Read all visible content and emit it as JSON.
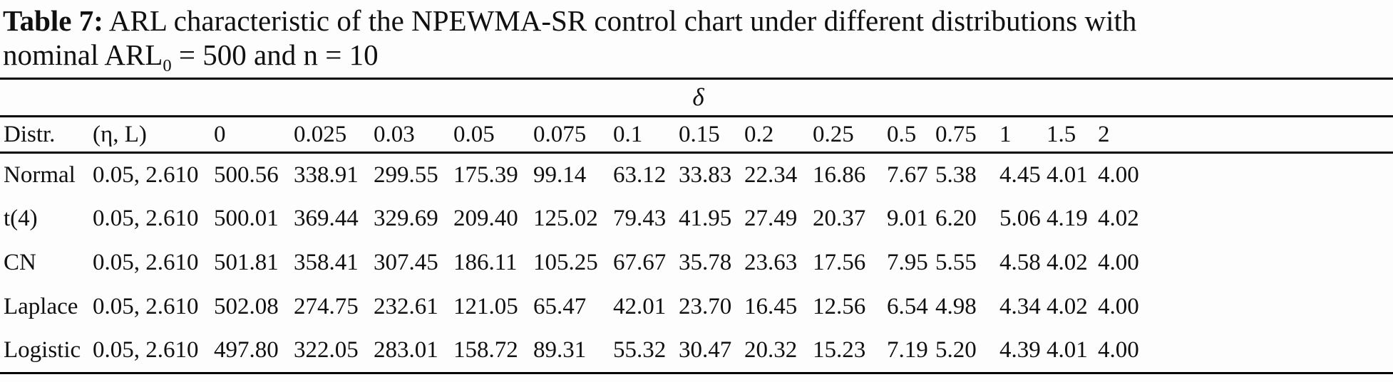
{
  "caption": {
    "label": "Table 7:",
    "line1_rest": "ARL characteristic of the NPEWMA-SR control chart under different distributions with",
    "line2_prefix": "nominal ARL",
    "subscript": "0",
    "line2_suffix": " = 500 and n = 10"
  },
  "table": {
    "span_header": "δ",
    "columns": [
      "Distr.",
      "(η, L)",
      "0",
      "0.025",
      "0.03",
      "0.05",
      "0.075",
      "0.1",
      "0.15",
      "0.2",
      "0.25",
      "0.5",
      "0.75",
      "1",
      "1.5",
      "2"
    ],
    "rows": [
      {
        "distribution": "Normal",
        "eta_L": "0.05, 2.610",
        "arl_values": [
          "500.56",
          "338.91",
          "299.55",
          "175.39",
          "99.14",
          "63.12",
          "33.83",
          "22.34",
          "16.86",
          "7.67",
          "5.38",
          "4.45",
          "4.01",
          "4.00"
        ]
      },
      {
        "distribution": "t(4)",
        "eta_L": "0.05, 2.610",
        "arl_values": [
          "500.01",
          "369.44",
          "329.69",
          "209.40",
          "125.02",
          "79.43",
          "41.95",
          "27.49",
          "20.37",
          "9.01",
          "6.20",
          "5.06",
          "4.19",
          "4.02"
        ]
      },
      {
        "distribution": "CN",
        "eta_L": "0.05, 2.610",
        "arl_values": [
          "501.81",
          "358.41",
          "307.45",
          "186.11",
          "105.25",
          "67.67",
          "35.78",
          "23.63",
          "17.56",
          "7.95",
          "5.55",
          "4.58",
          "4.02",
          "4.00"
        ]
      },
      {
        "distribution": "Laplace",
        "eta_L": "0.05, 2.610",
        "arl_values": [
          "502.08",
          "274.75",
          "232.61",
          "121.05",
          "65.47",
          "42.01",
          "23.70",
          "16.45",
          "12.56",
          "6.54",
          "4.98",
          "4.34",
          "4.02",
          "4.00"
        ]
      },
      {
        "distribution": "Logistic",
        "eta_L": "0.05, 2.610",
        "arl_values": [
          "497.80",
          "322.05",
          "283.01",
          "158.72",
          "89.31",
          "55.32",
          "30.47",
          "20.32",
          "15.23",
          "7.19",
          "5.20",
          "4.39",
          "4.01",
          "4.00"
        ]
      }
    ]
  }
}
